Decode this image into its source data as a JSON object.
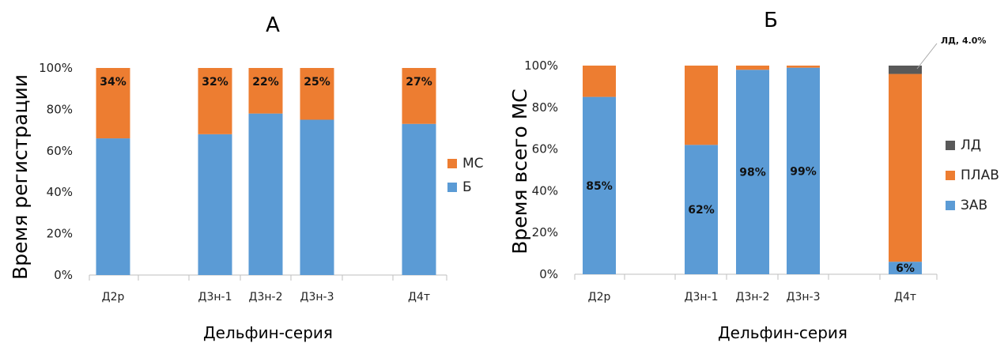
{
  "chart_data": [
    {
      "type": "bar",
      "stacked": true,
      "title": "А",
      "xlabel": "Дельфин-серия",
      "ylabel": "Время регистрации",
      "ylim": [
        0,
        100
      ],
      "yticks": [
        "0%",
        "20%",
        "40%",
        "60%",
        "80%",
        "100%"
      ],
      "categories": [
        "Д2р",
        "",
        "Д3н-1",
        "Д3н-2",
        "Д3н-3",
        "",
        "Д4т"
      ],
      "series": [
        {
          "name": "Б",
          "color": "#5B9BD5",
          "values": [
            66,
            null,
            68,
            78,
            75,
            null,
            73
          ]
        },
        {
          "name": "МС",
          "color": "#ED7D31",
          "values": [
            34,
            null,
            32,
            22,
            25,
            null,
            27
          ]
        }
      ],
      "data_labels": [
        {
          "series": "МС",
          "labels": [
            "34%",
            "",
            "32%",
            "22%",
            "25%",
            "",
            "27%"
          ]
        }
      ],
      "legend": {
        "position": "right",
        "order": [
          "МС",
          "Б"
        ]
      },
      "grid": false
    },
    {
      "type": "bar",
      "stacked": true,
      "title": "Б",
      "xlabel": "Дельфин-серия",
      "ylabel": "Время всего МС",
      "ylim": [
        0,
        100
      ],
      "yticks": [
        "0%",
        "20%",
        "40%",
        "60%",
        "80%",
        "100%"
      ],
      "categories": [
        "Д2р",
        "",
        "Д3н-1",
        "Д3н-2",
        "Д3н-3",
        "",
        "Д4т"
      ],
      "series": [
        {
          "name": "ЗАВ",
          "color": "#5B9BD5",
          "values": [
            85,
            null,
            62,
            98,
            99,
            null,
            6
          ]
        },
        {
          "name": "ПЛАВ",
          "color": "#ED7D31",
          "values": [
            15,
            null,
            38,
            2,
            1,
            null,
            90
          ]
        },
        {
          "name": "ЛД",
          "color": "#595959",
          "values": [
            0,
            null,
            0,
            0,
            0,
            null,
            4
          ]
        }
      ],
      "data_labels": [
        {
          "series": "ЗАВ",
          "labels": [
            "85%",
            "",
            "62%",
            "98%",
            "99%",
            "",
            "6%"
          ]
        }
      ],
      "annotation": "ЛД, 4.0%",
      "legend": {
        "position": "right",
        "order": [
          "ЛД",
          "ПЛАВ",
          "ЗАВ"
        ]
      },
      "grid": false
    }
  ]
}
